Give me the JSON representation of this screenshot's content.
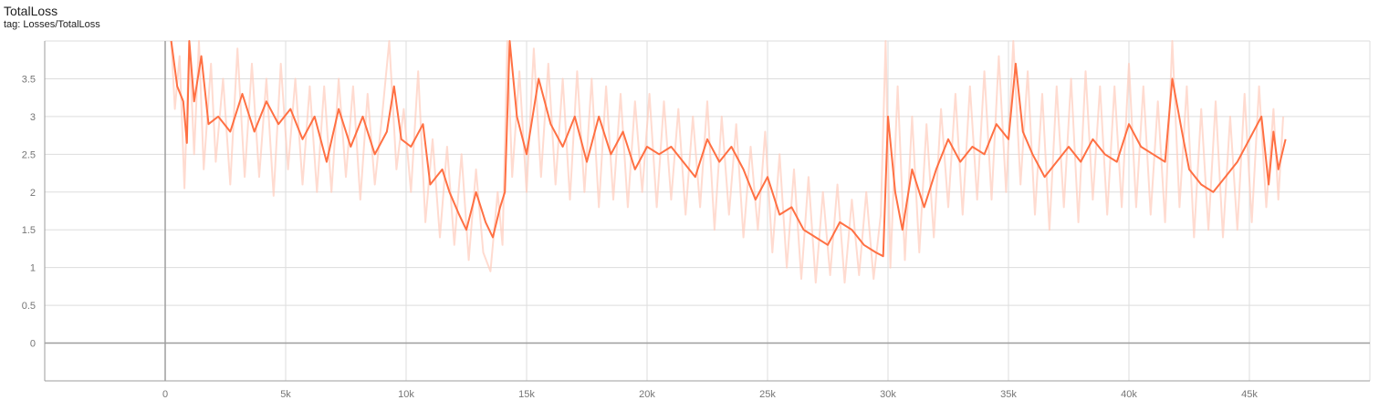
{
  "header": {
    "title": "TotalLoss",
    "tag": "tag: Losses/TotalLoss"
  },
  "colors": {
    "smoothed": "#ff7043",
    "raw": "#ffccbc",
    "grid": "#dddddd",
    "axis": "#9e9e9e"
  },
  "chart_data": {
    "type": "line",
    "title": "TotalLoss",
    "subtitle": "tag: Losses/TotalLoss",
    "xlabel": "",
    "ylabel": "",
    "xlim": [
      -5000,
      50000
    ],
    "ylim": [
      -0.5,
      4.0
    ],
    "grid": true,
    "x_ticks": [
      0,
      5000,
      10000,
      15000,
      20000,
      25000,
      30000,
      35000,
      40000,
      45000
    ],
    "x_tick_labels": [
      "0",
      "5k",
      "10k",
      "15k",
      "20k",
      "25k",
      "30k",
      "35k",
      "40k",
      "45k"
    ],
    "y_ticks": [
      0,
      0.5,
      1,
      1.5,
      2,
      2.5,
      3,
      3.5
    ],
    "y_tick_labels": [
      "0",
      "0.5",
      "1",
      "1.5",
      "2",
      "2.5",
      "3",
      "3.5"
    ],
    "series": [
      {
        "role": "smoothed",
        "points": [
          [
            250,
            4.0
          ],
          [
            500,
            3.4
          ],
          [
            750,
            3.2
          ],
          [
            900,
            2.65
          ],
          [
            1000,
            4.0
          ],
          [
            1200,
            3.2
          ],
          [
            1500,
            3.8
          ],
          [
            1800,
            2.9
          ],
          [
            2200,
            3.0
          ],
          [
            2700,
            2.8
          ],
          [
            3200,
            3.3
          ],
          [
            3700,
            2.8
          ],
          [
            4200,
            3.2
          ],
          [
            4700,
            2.9
          ],
          [
            5200,
            3.1
          ],
          [
            5700,
            2.7
          ],
          [
            6200,
            3.0
          ],
          [
            6700,
            2.4
          ],
          [
            7200,
            3.1
          ],
          [
            7700,
            2.6
          ],
          [
            8200,
            3.0
          ],
          [
            8700,
            2.5
          ],
          [
            9200,
            2.8
          ],
          [
            9500,
            3.4
          ],
          [
            9800,
            2.7
          ],
          [
            10200,
            2.6
          ],
          [
            10700,
            2.9
          ],
          [
            11000,
            2.1
          ],
          [
            11500,
            2.3
          ],
          [
            11800,
            2.0
          ],
          [
            12200,
            1.7
          ],
          [
            12500,
            1.5
          ],
          [
            12900,
            2.0
          ],
          [
            13300,
            1.6
          ],
          [
            13600,
            1.4
          ],
          [
            13900,
            1.8
          ],
          [
            14100,
            2.0
          ],
          [
            14300,
            4.0
          ],
          [
            14600,
            3.0
          ],
          [
            15000,
            2.5
          ],
          [
            15500,
            3.5
          ],
          [
            16000,
            2.9
          ],
          [
            16500,
            2.6
          ],
          [
            17000,
            3.0
          ],
          [
            17500,
            2.4
          ],
          [
            18000,
            3.0
          ],
          [
            18500,
            2.5
          ],
          [
            19000,
            2.8
          ],
          [
            19500,
            2.3
          ],
          [
            20000,
            2.6
          ],
          [
            20500,
            2.5
          ],
          [
            21000,
            2.6
          ],
          [
            21500,
            2.4
          ],
          [
            22000,
            2.2
          ],
          [
            22500,
            2.7
          ],
          [
            23000,
            2.4
          ],
          [
            23500,
            2.6
          ],
          [
            24000,
            2.3
          ],
          [
            24500,
            1.9
          ],
          [
            25000,
            2.2
          ],
          [
            25500,
            1.7
          ],
          [
            26000,
            1.8
          ],
          [
            26500,
            1.5
          ],
          [
            27000,
            1.4
          ],
          [
            27500,
            1.3
          ],
          [
            28000,
            1.6
          ],
          [
            28500,
            1.5
          ],
          [
            29000,
            1.3
          ],
          [
            29500,
            1.2
          ],
          [
            29800,
            1.15
          ],
          [
            30000,
            3.0
          ],
          [
            30300,
            2.0
          ],
          [
            30600,
            1.5
          ],
          [
            31000,
            2.3
          ],
          [
            31500,
            1.8
          ],
          [
            32000,
            2.3
          ],
          [
            32500,
            2.7
          ],
          [
            33000,
            2.4
          ],
          [
            33500,
            2.6
          ],
          [
            34000,
            2.5
          ],
          [
            34500,
            2.9
          ],
          [
            35000,
            2.7
          ],
          [
            35300,
            3.7
          ],
          [
            35600,
            2.8
          ],
          [
            36000,
            2.5
          ],
          [
            36500,
            2.2
          ],
          [
            37000,
            2.4
          ],
          [
            37500,
            2.6
          ],
          [
            38000,
            2.4
          ],
          [
            38500,
            2.7
          ],
          [
            39000,
            2.5
          ],
          [
            39500,
            2.4
          ],
          [
            40000,
            2.9
          ],
          [
            40500,
            2.6
          ],
          [
            41000,
            2.5
          ],
          [
            41500,
            2.4
          ],
          [
            41800,
            3.5
          ],
          [
            42200,
            2.8
          ],
          [
            42500,
            2.3
          ],
          [
            43000,
            2.1
          ],
          [
            43500,
            2.0
          ],
          [
            44000,
            2.2
          ],
          [
            44500,
            2.4
          ],
          [
            45000,
            2.7
          ],
          [
            45500,
            3.0
          ],
          [
            45800,
            2.1
          ],
          [
            46000,
            2.8
          ],
          [
            46200,
            2.3
          ],
          [
            46500,
            2.7
          ]
        ]
      },
      {
        "role": "raw",
        "points": [
          [
            250,
            4.0
          ],
          [
            400,
            3.1
          ],
          [
            600,
            3.8
          ],
          [
            800,
            2.05
          ],
          [
            1000,
            4.0
          ],
          [
            1200,
            2.5
          ],
          [
            1400,
            4.0
          ],
          [
            1600,
            2.3
          ],
          [
            1900,
            3.7
          ],
          [
            2100,
            2.4
          ],
          [
            2400,
            3.5
          ],
          [
            2700,
            2.1
          ],
          [
            3000,
            3.9
          ],
          [
            3300,
            2.2
          ],
          [
            3600,
            3.7
          ],
          [
            3900,
            2.2
          ],
          [
            4200,
            3.5
          ],
          [
            4500,
            1.95
          ],
          [
            4800,
            3.7
          ],
          [
            5100,
            2.3
          ],
          [
            5400,
            3.5
          ],
          [
            5700,
            2.1
          ],
          [
            6000,
            3.4
          ],
          [
            6300,
            2.0
          ],
          [
            6600,
            3.4
          ],
          [
            6900,
            2.0
          ],
          [
            7200,
            3.5
          ],
          [
            7500,
            2.2
          ],
          [
            7800,
            3.4
          ],
          [
            8100,
            1.9
          ],
          [
            8400,
            3.3
          ],
          [
            8700,
            2.1
          ],
          [
            9000,
            3.0
          ],
          [
            9300,
            4.0
          ],
          [
            9600,
            2.3
          ],
          [
            9900,
            3.1
          ],
          [
            10200,
            2.0
          ],
          [
            10500,
            3.6
          ],
          [
            10800,
            1.6
          ],
          [
            11100,
            2.7
          ],
          [
            11400,
            1.4
          ],
          [
            11700,
            2.6
          ],
          [
            12000,
            1.3
          ],
          [
            12300,
            2.5
          ],
          [
            12600,
            1.1
          ],
          [
            12900,
            2.3
          ],
          [
            13200,
            1.2
          ],
          [
            13500,
            0.95
          ],
          [
            13800,
            2.0
          ],
          [
            14000,
            1.3
          ],
          [
            14200,
            4.0
          ],
          [
            14400,
            2.2
          ],
          [
            14700,
            3.6
          ],
          [
            15000,
            2.0
          ],
          [
            15300,
            3.9
          ],
          [
            15600,
            2.2
          ],
          [
            15900,
            3.7
          ],
          [
            16200,
            2.1
          ],
          [
            16500,
            3.5
          ],
          [
            16800,
            1.9
          ],
          [
            17100,
            3.6
          ],
          [
            17400,
            2.0
          ],
          [
            17700,
            3.5
          ],
          [
            18000,
            1.8
          ],
          [
            18300,
            3.4
          ],
          [
            18600,
            1.9
          ],
          [
            18900,
            3.3
          ],
          [
            19200,
            1.8
          ],
          [
            19500,
            3.2
          ],
          [
            19800,
            2.0
          ],
          [
            20100,
            3.3
          ],
          [
            20400,
            1.8
          ],
          [
            20700,
            3.2
          ],
          [
            21000,
            1.9
          ],
          [
            21300,
            3.1
          ],
          [
            21600,
            1.7
          ],
          [
            21900,
            3.0
          ],
          [
            22200,
            1.8
          ],
          [
            22500,
            3.2
          ],
          [
            22800,
            1.5
          ],
          [
            23100,
            3.0
          ],
          [
            23400,
            1.7
          ],
          [
            23700,
            2.9
          ],
          [
            24000,
            1.4
          ],
          [
            24300,
            2.6
          ],
          [
            24600,
            1.5
          ],
          [
            24900,
            2.8
          ],
          [
            25200,
            1.2
          ],
          [
            25500,
            2.5
          ],
          [
            25800,
            1.0
          ],
          [
            26100,
            2.3
          ],
          [
            26400,
            0.85
          ],
          [
            26700,
            2.2
          ],
          [
            27000,
            0.8
          ],
          [
            27300,
            2.0
          ],
          [
            27600,
            0.9
          ],
          [
            27900,
            2.1
          ],
          [
            28200,
            0.8
          ],
          [
            28500,
            1.9
          ],
          [
            28800,
            0.9
          ],
          [
            29100,
            2.0
          ],
          [
            29400,
            0.85
          ],
          [
            29700,
            1.7
          ],
          [
            29900,
            4.0
          ],
          [
            30100,
            1.0
          ],
          [
            30400,
            3.4
          ],
          [
            30700,
            1.1
          ],
          [
            31000,
            3.0
          ],
          [
            31300,
            1.2
          ],
          [
            31600,
            2.9
          ],
          [
            31900,
            1.4
          ],
          [
            32200,
            3.1
          ],
          [
            32500,
            1.8
          ],
          [
            32800,
            3.3
          ],
          [
            33100,
            1.7
          ],
          [
            33400,
            3.4
          ],
          [
            33700,
            1.9
          ],
          [
            34000,
            3.6
          ],
          [
            34300,
            1.9
          ],
          [
            34600,
            3.8
          ],
          [
            34900,
            2.0
          ],
          [
            35200,
            4.0
          ],
          [
            35500,
            2.1
          ],
          [
            35800,
            3.6
          ],
          [
            36100,
            1.7
          ],
          [
            36400,
            3.3
          ],
          [
            36700,
            1.5
          ],
          [
            37000,
            3.4
          ],
          [
            37300,
            1.8
          ],
          [
            37600,
            3.5
          ],
          [
            37900,
            1.6
          ],
          [
            38200,
            3.6
          ],
          [
            38500,
            1.9
          ],
          [
            38800,
            3.4
          ],
          [
            39100,
            1.7
          ],
          [
            39400,
            3.4
          ],
          [
            39700,
            1.8
          ],
          [
            40000,
            3.7
          ],
          [
            40300,
            1.8
          ],
          [
            40600,
            3.4
          ],
          [
            40900,
            1.7
          ],
          [
            41200,
            3.2
          ],
          [
            41500,
            1.6
          ],
          [
            41800,
            4.0
          ],
          [
            42100,
            1.8
          ],
          [
            42400,
            3.4
          ],
          [
            42700,
            1.4
          ],
          [
            43000,
            3.1
          ],
          [
            43300,
            1.5
          ],
          [
            43600,
            3.2
          ],
          [
            43900,
            1.4
          ],
          [
            44200,
            3.0
          ],
          [
            44500,
            1.5
          ],
          [
            44800,
            3.3
          ],
          [
            45100,
            1.6
          ],
          [
            45400,
            3.4
          ],
          [
            45700,
            1.8
          ],
          [
            46000,
            3.1
          ],
          [
            46200,
            1.9
          ],
          [
            46400,
            3.0
          ]
        ]
      }
    ]
  }
}
